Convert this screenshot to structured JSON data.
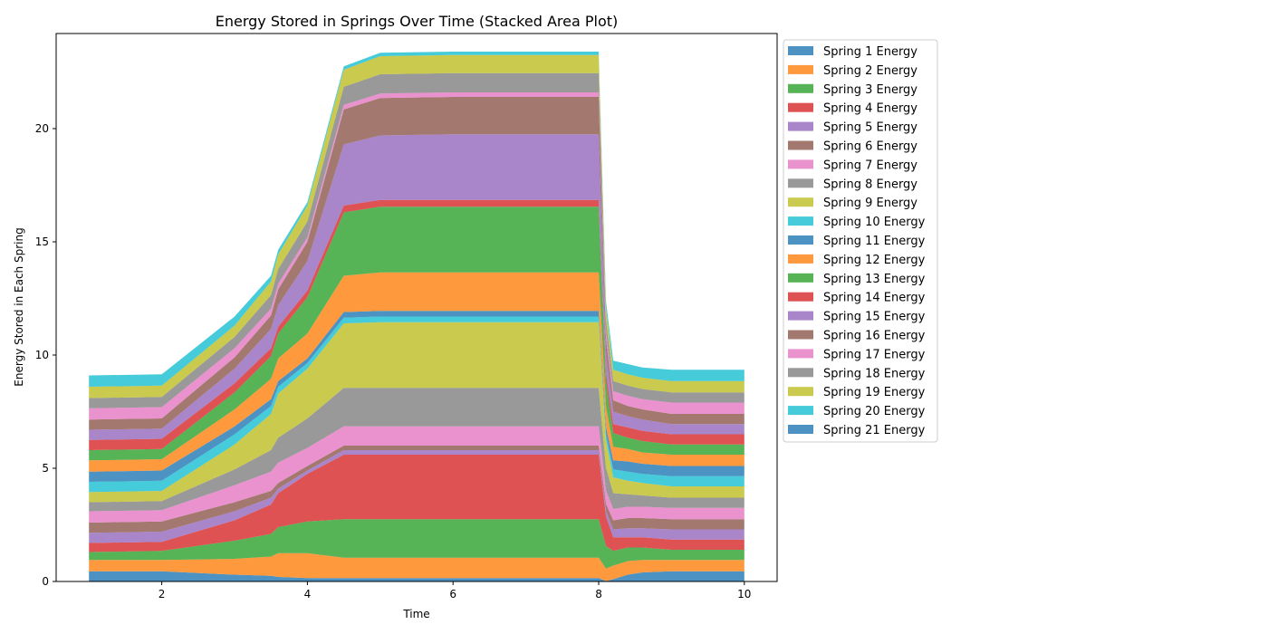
{
  "chart_data": {
    "type": "area",
    "stacked": true,
    "title": "Energy Stored in Springs Over Time (Stacked Area Plot)",
    "xlabel": "Time",
    "ylabel": "Energy Stored in Each Spring",
    "xlim": [
      0.55,
      10.45
    ],
    "ylim": [
      0,
      24.2
    ],
    "xticks": [
      2,
      4,
      6,
      8,
      10
    ],
    "yticks": [
      0,
      5,
      10,
      15,
      20
    ],
    "grid": false,
    "legend_position": "outside-right",
    "x": [
      1.0,
      2.0,
      3.0,
      3.5,
      3.6,
      4.0,
      4.5,
      5.0,
      6.0,
      7.0,
      8.0,
      8.1,
      8.2,
      8.4,
      8.6,
      9.0,
      10.0
    ],
    "series": [
      {
        "name": "Spring 1 Energy",
        "color": "#1f77b4",
        "values": [
          0.45,
          0.45,
          0.3,
          0.25,
          0.2,
          0.15,
          0.15,
          0.15,
          0.15,
          0.15,
          0.15,
          0.02,
          0.1,
          0.3,
          0.4,
          0.45,
          0.45
        ]
      },
      {
        "name": "Spring 2 Energy",
        "color": "#ff7f0e",
        "values": [
          0.5,
          0.5,
          0.7,
          0.85,
          1.05,
          1.1,
          0.9,
          0.9,
          0.9,
          0.9,
          0.9,
          0.55,
          0.6,
          0.6,
          0.55,
          0.5,
          0.5
        ]
      },
      {
        "name": "Spring 3 Energy",
        "color": "#2ca02c",
        "values": [
          0.35,
          0.4,
          0.8,
          1.0,
          1.15,
          1.4,
          1.7,
          1.7,
          1.7,
          1.7,
          1.7,
          1.0,
          0.65,
          0.6,
          0.55,
          0.45,
          0.45
        ]
      },
      {
        "name": "Spring 4 Energy",
        "color": "#d62728",
        "values": [
          0.4,
          0.4,
          0.9,
          1.3,
          1.5,
          2.1,
          2.85,
          2.85,
          2.85,
          2.85,
          2.85,
          1.3,
          0.6,
          0.45,
          0.45,
          0.45,
          0.45
        ]
      },
      {
        "name": "Spring 5 Energy",
        "color": "#9467bd",
        "values": [
          0.45,
          0.45,
          0.4,
          0.3,
          0.2,
          0.15,
          0.2,
          0.2,
          0.2,
          0.2,
          0.2,
          0.25,
          0.35,
          0.4,
          0.4,
          0.45,
          0.45
        ]
      },
      {
        "name": "Spring 6 Energy",
        "color": "#8c564b",
        "values": [
          0.45,
          0.45,
          0.4,
          0.3,
          0.25,
          0.2,
          0.2,
          0.2,
          0.2,
          0.2,
          0.2,
          0.3,
          0.4,
          0.45,
          0.45,
          0.45,
          0.45
        ]
      },
      {
        "name": "Spring 7 Energy",
        "color": "#e377c2",
        "values": [
          0.5,
          0.5,
          0.75,
          0.85,
          0.9,
          0.8,
          0.85,
          0.85,
          0.85,
          0.85,
          0.85,
          0.6,
          0.5,
          0.5,
          0.5,
          0.5,
          0.5
        ]
      },
      {
        "name": "Spring 8 Energy",
        "color": "#7f7f7f",
        "values": [
          0.4,
          0.4,
          0.7,
          0.95,
          1.1,
          1.3,
          1.7,
          1.7,
          1.7,
          1.7,
          1.7,
          1.0,
          0.7,
          0.55,
          0.5,
          0.45,
          0.45
        ]
      },
      {
        "name": "Spring 9 Energy",
        "color": "#bcbd22",
        "values": [
          0.45,
          0.45,
          1.1,
          1.6,
          1.95,
          2.2,
          2.85,
          2.9,
          2.9,
          2.9,
          2.9,
          1.2,
          0.7,
          0.6,
          0.55,
          0.5,
          0.5
        ]
      },
      {
        "name": "Spring 10 Energy",
        "color": "#17becf",
        "values": [
          0.45,
          0.45,
          0.45,
          0.35,
          0.3,
          0.25,
          0.25,
          0.25,
          0.25,
          0.25,
          0.25,
          0.3,
          0.35,
          0.4,
          0.4,
          0.45,
          0.45
        ]
      },
      {
        "name": "Spring 11 Energy",
        "color": "#1f77b4",
        "values": [
          0.45,
          0.45,
          0.35,
          0.3,
          0.25,
          0.2,
          0.25,
          0.25,
          0.25,
          0.25,
          0.25,
          0.3,
          0.4,
          0.45,
          0.45,
          0.45,
          0.45
        ]
      },
      {
        "name": "Spring 12 Energy",
        "color": "#ff7f0e",
        "values": [
          0.5,
          0.5,
          0.75,
          0.9,
          1.0,
          1.1,
          1.6,
          1.7,
          1.7,
          1.7,
          1.7,
          0.9,
          0.6,
          0.55,
          0.5,
          0.5,
          0.5
        ]
      },
      {
        "name": "Spring 13 Energy",
        "color": "#2ca02c",
        "values": [
          0.45,
          0.45,
          0.75,
          1.0,
          1.1,
          1.6,
          2.8,
          2.9,
          2.9,
          2.9,
          2.9,
          1.1,
          0.6,
          0.5,
          0.5,
          0.45,
          0.45
        ]
      },
      {
        "name": "Spring 14 Energy",
        "color": "#d62728",
        "values": [
          0.45,
          0.45,
          0.4,
          0.35,
          0.3,
          0.3,
          0.3,
          0.3,
          0.3,
          0.3,
          0.3,
          0.35,
          0.4,
          0.45,
          0.45,
          0.45,
          0.45
        ]
      },
      {
        "name": "Spring 15 Energy",
        "color": "#9467bd",
        "values": [
          0.45,
          0.45,
          0.65,
          0.85,
          0.95,
          1.3,
          2.7,
          2.85,
          2.9,
          2.9,
          2.9,
          0.9,
          0.55,
          0.5,
          0.5,
          0.45,
          0.45
        ]
      },
      {
        "name": "Spring 16 Energy",
        "color": "#8c564b",
        "values": [
          0.45,
          0.45,
          0.5,
          0.6,
          0.7,
          0.85,
          1.55,
          1.65,
          1.65,
          1.65,
          1.65,
          0.65,
          0.5,
          0.45,
          0.45,
          0.45,
          0.45
        ]
      },
      {
        "name": "Spring 17 Energy",
        "color": "#e377c2",
        "values": [
          0.5,
          0.5,
          0.4,
          0.3,
          0.25,
          0.2,
          0.2,
          0.2,
          0.2,
          0.2,
          0.2,
          0.3,
          0.4,
          0.45,
          0.45,
          0.5,
          0.5
        ]
      },
      {
        "name": "Spring 18 Energy",
        "color": "#7f7f7f",
        "values": [
          0.45,
          0.45,
          0.5,
          0.6,
          0.65,
          0.7,
          0.8,
          0.85,
          0.85,
          0.85,
          0.85,
          0.5,
          0.45,
          0.45,
          0.45,
          0.45,
          0.45
        ]
      },
      {
        "name": "Spring 19 Energy",
        "color": "#bcbd22",
        "values": [
          0.5,
          0.5,
          0.5,
          0.6,
          0.65,
          0.7,
          0.75,
          0.8,
          0.8,
          0.8,
          0.8,
          0.55,
          0.5,
          0.5,
          0.5,
          0.5,
          0.5
        ]
      },
      {
        "name": "Spring 20 Energy",
        "color": "#17becf",
        "values": [
          0.5,
          0.5,
          0.4,
          0.25,
          0.2,
          0.15,
          0.15,
          0.15,
          0.15,
          0.15,
          0.15,
          0.3,
          0.4,
          0.45,
          0.45,
          0.5,
          0.5
        ]
      },
      {
        "name": "Spring 21 Energy",
        "color": "#1f77b4",
        "values": [
          0,
          0,
          0,
          0,
          0,
          0,
          0,
          0,
          0,
          0,
          0,
          0,
          0,
          0,
          0,
          0,
          0
        ]
      }
    ]
  }
}
